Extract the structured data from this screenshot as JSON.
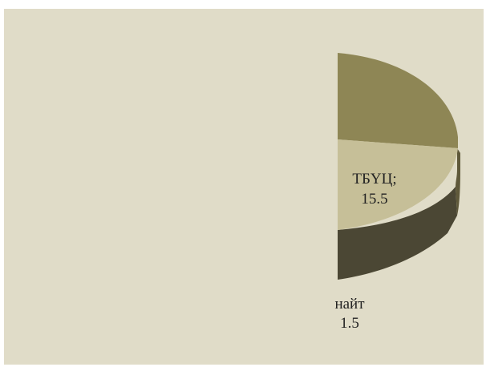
{
  "chart_data": {
    "type": "pie",
    "style": "3d",
    "title": "",
    "visible_portion": "right half only; left half of the pie is cropped/hidden",
    "slices": [
      {
        "name": "",
        "value": null,
        "label_text": "",
        "color": "#8e8655",
        "side_color": "#5f593a"
      },
      {
        "name": "ТБҮЦ",
        "value": 15.5,
        "label_text": "ТБҮЦ;",
        "value_text": "15.5",
        "color": "#c6bf98",
        "side_color": "#6d6849"
      },
      {
        "name": "…найт",
        "value": 1.5,
        "label_text": "найт",
        "value_text": "1.5",
        "color": "#4b4734",
        "side_color": "#4b4734"
      }
    ],
    "legend": "none",
    "colors": {
      "background": "#e0dcc8"
    }
  }
}
